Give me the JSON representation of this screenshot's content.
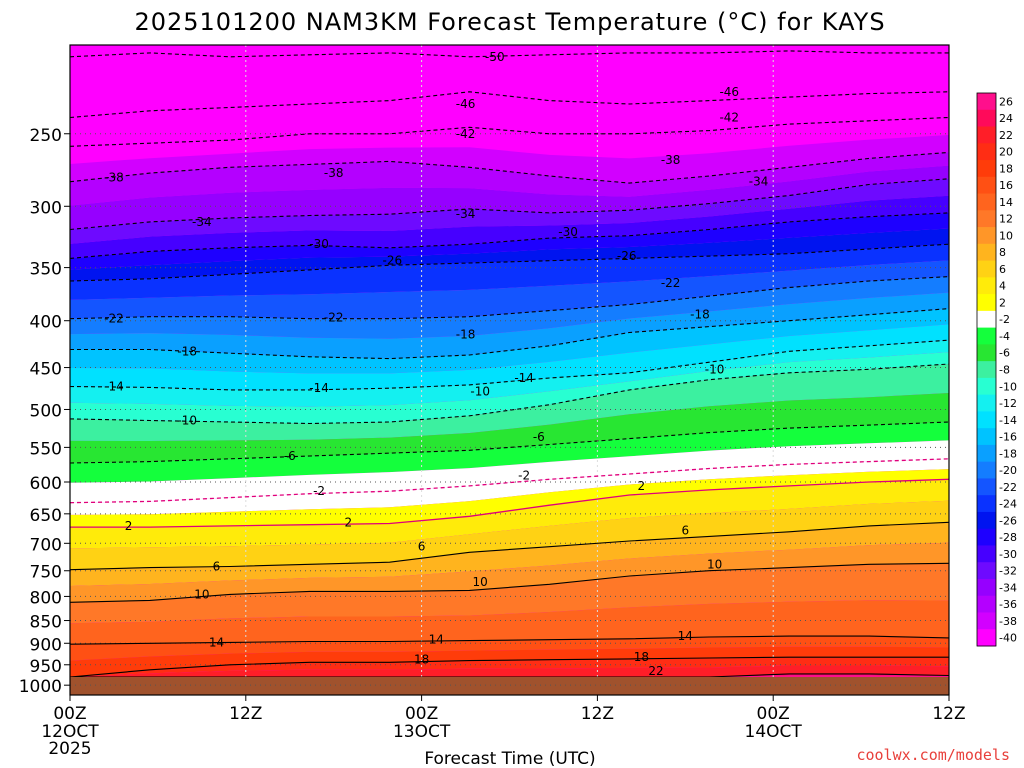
{
  "chart_data": {
    "type": "heatmap",
    "title": "2025101200 NAM3KM Forecast Temperature (°C) for KAYS",
    "xlabel": "Forecast Time (UTC)",
    "ylabel": "",
    "x_ticks": [
      "00Z",
      "12Z",
      "00Z",
      "12Z",
      "00Z",
      "12Z"
    ],
    "x_date_labels": [
      "12OCT",
      "",
      "13OCT",
      "",
      "14OCT",
      ""
    ],
    "x_year_label": "2025",
    "x_hours": [
      0,
      12,
      24,
      36,
      48,
      60
    ],
    "y_ticks": [
      250,
      300,
      350,
      400,
      450,
      500,
      550,
      600,
      650,
      700,
      750,
      800,
      850,
      900,
      950,
      1000
    ],
    "ylim_hpa": [
      200,
      1025
    ],
    "xlim_hours": [
      0,
      60
    ],
    "colorbar": {
      "labels": [
        "26",
        "24",
        "22",
        "20",
        "18",
        "16",
        "14",
        "12",
        "10",
        "8",
        "6",
        "4",
        "2",
        "-2",
        "-4",
        "-6",
        "-8",
        "-10",
        "-12",
        "-14",
        "-16",
        "-18",
        "-20",
        "-22",
        "-24",
        "-26",
        "-28",
        "-30",
        "-32",
        "-34",
        "-36",
        "-38",
        "-40"
      ],
      "colors": [
        "#ff0f8c",
        "#ff0a5a",
        "#ff1e28",
        "#ff2d14",
        "#ff3c0a",
        "#ff5014",
        "#ff641e",
        "#ff7828",
        "#ff9628",
        "#ffb41e",
        "#ffd214",
        "#ffeb0a",
        "#ffff00",
        "#ffffff",
        "#14ff3c",
        "#28e632",
        "#3cf0a0",
        "#28ffd2",
        "#14f0f0",
        "#00e1ff",
        "#00c3ff",
        "#0aa0ff",
        "#147dff",
        "#1455ff",
        "#0a32ff",
        "#0014f0",
        "#1e00ff",
        "#4600ff",
        "#6e0aff",
        "#9600ff",
        "#b400ff",
        "#d200ff",
        "#ff00ff"
      ]
    },
    "isotherm_levels_hpa": [
      {
        "t": -50,
        "p": [
          206,
          204,
          206,
          205,
          204,
          206,
          205,
          204,
          204,
          203,
          204,
          204
        ]
      },
      {
        "t": -46,
        "p": [
          240,
          236,
          234,
          232,
          230,
          225,
          230,
          232,
          230,
          228,
          226,
          225
        ]
      },
      {
        "t": -42,
        "p": [
          258,
          256,
          254,
          250,
          250,
          246,
          250,
          250,
          248,
          244,
          242,
          240
        ]
      },
      {
        "t": -38,
        "p": [
          282,
          276,
          272,
          270,
          268,
          272,
          278,
          283,
          278,
          272,
          266,
          262
        ]
      },
      {
        "t": -34,
        "p": [
          318,
          312,
          309,
          307,
          306,
          302,
          305,
          303,
          298,
          292,
          284,
          280
        ]
      },
      {
        "t": -30,
        "p": [
          342,
          336,
          333,
          331,
          333,
          330,
          325,
          323,
          318,
          312,
          308,
          305
        ]
      },
      {
        "t": -26,
        "p": [
          362,
          360,
          356,
          352,
          348,
          346,
          344,
          342,
          340,
          338,
          334,
          330
        ]
      },
      {
        "t": -22,
        "p": [
          398,
          396,
          396,
          398,
          398,
          396,
          390,
          384,
          376,
          368,
          362,
          358
        ]
      },
      {
        "t": -18,
        "p": [
          430,
          430,
          434,
          438,
          440,
          436,
          426,
          412,
          406,
          400,
          394,
          388
        ]
      },
      {
        "t": -14,
        "p": [
          472,
          473,
          476,
          476,
          474,
          470,
          462,
          456,
          444,
          432,
          426,
          420
        ]
      },
      {
        "t": -10,
        "p": [
          512,
          514,
          516,
          518,
          516,
          508,
          494,
          476,
          464,
          456,
          452,
          446
        ]
      },
      {
        "t": -6,
        "p": [
          572,
          570,
          566,
          562,
          558,
          554,
          546,
          538,
          530,
          524,
          520,
          516
        ]
      },
      {
        "t": -2,
        "p": [
          632,
          630,
          624,
          618,
          614,
          606,
          596,
          588,
          580,
          574,
          570,
          566
        ]
      },
      {
        "t": 2,
        "p": [
          672,
          672,
          670,
          668,
          666,
          654,
          636,
          620,
          612,
          606,
          600,
          596
        ]
      },
      {
        "t": 6,
        "p": [
          748,
          744,
          742,
          738,
          734,
          716,
          706,
          696,
          688,
          680,
          670,
          664
        ]
      },
      {
        "t": 10,
        "p": [
          812,
          808,
          796,
          790,
          790,
          788,
          776,
          760,
          750,
          744,
          738,
          736
        ]
      },
      {
        "t": 14,
        "p": [
          902,
          900,
          898,
          896,
          896,
          894,
          892,
          890,
          886,
          884,
          884,
          888
        ]
      },
      {
        "t": 18,
        "p": [
          980,
          962,
          950,
          944,
          944,
          940,
          938,
          936,
          934,
          932,
          932,
          932
        ]
      },
      {
        "t": 22,
        "p": [
          1024,
          1010,
          1000,
          994,
          992,
          996,
          996,
          992,
          980,
          972,
          972,
          976
        ]
      }
    ],
    "isotherm_labels": [
      {
        "t": -50,
        "h": 29,
        "p": 206
      },
      {
        "t": -46,
        "h": 27,
        "p": 232
      },
      {
        "t": -46,
        "h": 45,
        "p": 225
      },
      {
        "t": -42,
        "h": 27,
        "p": 250
      },
      {
        "t": -42,
        "h": 45,
        "p": 240
      },
      {
        "t": -38,
        "h": 3,
        "p": 279
      },
      {
        "t": -38,
        "h": 18,
        "p": 276
      },
      {
        "t": -38,
        "h": 41,
        "p": 267
      },
      {
        "t": -34,
        "h": 9,
        "p": 312
      },
      {
        "t": -34,
        "h": 27,
        "p": 306
      },
      {
        "t": -34,
        "h": 47,
        "p": 282
      },
      {
        "t": -30,
        "h": 17,
        "p": 330
      },
      {
        "t": -30,
        "h": 34,
        "p": 320
      },
      {
        "t": -26,
        "h": 22,
        "p": 344
      },
      {
        "t": -26,
        "h": 38,
        "p": 340
      },
      {
        "t": -22,
        "h": 3,
        "p": 398
      },
      {
        "t": -22,
        "h": 18,
        "p": 397
      },
      {
        "t": -22,
        "h": 41,
        "p": 364
      },
      {
        "t": -18,
        "h": 8,
        "p": 432
      },
      {
        "t": -18,
        "h": 27,
        "p": 414
      },
      {
        "t": -18,
        "h": 43,
        "p": 394
      },
      {
        "t": -14,
        "h": 3,
        "p": 472
      },
      {
        "t": -14,
        "h": 17,
        "p": 474
      },
      {
        "t": -14,
        "h": 31,
        "p": 462
      },
      {
        "t": -10,
        "h": 8,
        "p": 514
      },
      {
        "t": -10,
        "h": 28,
        "p": 478
      },
      {
        "t": -10,
        "h": 44,
        "p": 452
      },
      {
        "t": -6,
        "h": 15,
        "p": 562
      },
      {
        "t": -6,
        "h": 32,
        "p": 536
      },
      {
        "t": -2,
        "h": 17,
        "p": 614
      },
      {
        "t": -2,
        "h": 31,
        "p": 590
      },
      {
        "t": 2,
        "h": 4,
        "p": 670
      },
      {
        "t": 2,
        "h": 19,
        "p": 664
      },
      {
        "t": 2,
        "h": 39,
        "p": 606
      },
      {
        "t": 6,
        "h": 10,
        "p": 742
      },
      {
        "t": 6,
        "h": 24,
        "p": 706
      },
      {
        "t": 6,
        "h": 42,
        "p": 678
      },
      {
        "t": 10,
        "h": 9,
        "p": 796
      },
      {
        "t": 10,
        "h": 28,
        "p": 772
      },
      {
        "t": 10,
        "h": 44,
        "p": 738
      },
      {
        "t": 14,
        "h": 10,
        "p": 898
      },
      {
        "t": 14,
        "h": 25,
        "p": 892
      },
      {
        "t": 14,
        "h": 42,
        "p": 884
      },
      {
        "t": 18,
        "h": 24,
        "p": 938
      },
      {
        "t": 18,
        "h": 39,
        "p": 932
      },
      {
        "t": 22,
        "h": 40,
        "p": 980
      }
    ]
  },
  "watermark": "coolwx.com/models"
}
